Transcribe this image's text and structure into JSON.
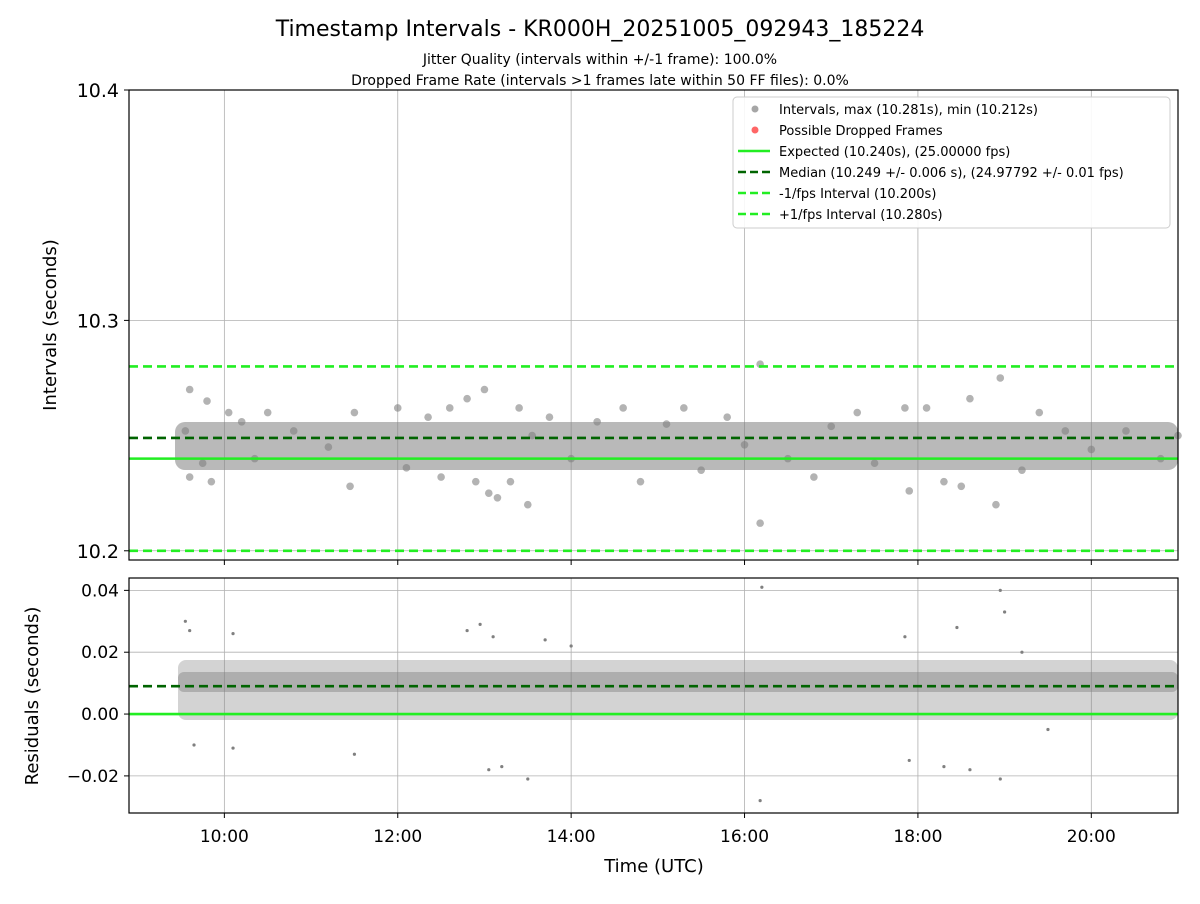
{
  "chart_data": [
    {
      "type": "scatter",
      "panel": "top",
      "title": "Timestamp Intervals - KR000H_20251005_092943_185224",
      "subtitle_lines": [
        "Jitter Quality (intervals within +/-1 frame): 100.0%",
        "Dropped Frame Rate (intervals >1 frames late within 50 FF files): 0.0%"
      ],
      "ylabel": "Intervals (seconds)",
      "xlim_hours": [
        8.9,
        21.0
      ],
      "ylim": [
        10.196,
        10.4
      ],
      "yticks": [
        10.2,
        10.3,
        10.4
      ],
      "ytick_labels": [
        "10.2",
        "10.3",
        "10.4"
      ],
      "grid": true,
      "legend_position": "top-right",
      "legend": [
        {
          "label": "Intervals, max (10.281s), min (10.212s)",
          "kind": "marker",
          "color": "#808080"
        },
        {
          "label": "Possible Dropped Frames",
          "kind": "marker",
          "color": "#ff0000"
        },
        {
          "label": "Expected (10.240s), (25.00000 fps)",
          "kind": "solid",
          "color": "#22ee22"
        },
        {
          "label": "Median (10.249 +/- 0.006 s), (24.97792 +/- 0.01 fps)",
          "kind": "dashed",
          "color": "#006400"
        },
        {
          "label": "-1/fps Interval (10.200s)",
          "kind": "dashed",
          "color": "#22ee22"
        },
        {
          "label": "+1/fps Interval (10.280s)",
          "kind": "dashed",
          "color": "#22ee22"
        }
      ],
      "reference_lines": [
        {
          "name": "expected",
          "y": 10.24,
          "style": "solid",
          "color": "#22ee22"
        },
        {
          "name": "median",
          "y": 10.249,
          "style": "dashed",
          "color": "#006400"
        },
        {
          "name": "minus-1-fps",
          "y": 10.2,
          "style": "dashed",
          "color": "#22ee22"
        },
        {
          "name": "plus-1-fps",
          "y": 10.28,
          "style": "dashed",
          "color": "#22ee22"
        }
      ],
      "series": [
        {
          "name": "intervals",
          "color": "#808080",
          "points": [
            [
              9.55,
              10.252
            ],
            [
              9.6,
              10.27
            ],
            [
              9.6,
              10.232
            ],
            [
              9.75,
              10.238
            ],
            [
              9.8,
              10.265
            ],
            [
              9.85,
              10.23
            ],
            [
              10.05,
              10.26
            ],
            [
              10.2,
              10.256
            ],
            [
              10.35,
              10.24
            ],
            [
              10.5,
              10.26
            ],
            [
              10.8,
              10.252
            ],
            [
              11.2,
              10.245
            ],
            [
              11.5,
              10.26
            ],
            [
              11.45,
              10.228
            ],
            [
              12.0,
              10.262
            ],
            [
              12.1,
              10.236
            ],
            [
              12.35,
              10.258
            ],
            [
              12.5,
              10.232
            ],
            [
              12.6,
              10.262
            ],
            [
              12.8,
              10.266
            ],
            [
              12.9,
              10.23
            ],
            [
              13.0,
              10.27
            ],
            [
              13.05,
              10.225
            ],
            [
              13.15,
              10.223
            ],
            [
              13.3,
              10.23
            ],
            [
              13.4,
              10.262
            ],
            [
              13.5,
              10.22
            ],
            [
              13.55,
              10.25
            ],
            [
              13.75,
              10.258
            ],
            [
              14.0,
              10.24
            ],
            [
              14.3,
              10.256
            ],
            [
              14.6,
              10.262
            ],
            [
              14.8,
              10.23
            ],
            [
              15.1,
              10.255
            ],
            [
              15.3,
              10.262
            ],
            [
              15.5,
              10.235
            ],
            [
              15.8,
              10.258
            ],
            [
              16.0,
              10.246
            ],
            [
              16.18,
              10.281
            ],
            [
              16.18,
              10.212
            ],
            [
              16.5,
              10.24
            ],
            [
              16.8,
              10.232
            ],
            [
              17.0,
              10.254
            ],
            [
              17.3,
              10.26
            ],
            [
              17.5,
              10.238
            ],
            [
              17.85,
              10.262
            ],
            [
              17.9,
              10.226
            ],
            [
              18.1,
              10.262
            ],
            [
              18.3,
              10.23
            ],
            [
              18.5,
              10.228
            ],
            [
              18.6,
              10.266
            ],
            [
              18.9,
              10.22
            ],
            [
              18.95,
              10.275
            ],
            [
              19.2,
              10.235
            ],
            [
              19.4,
              10.26
            ],
            [
              19.7,
              10.252
            ],
            [
              20.0,
              10.244
            ],
            [
              20.4,
              10.252
            ],
            [
              20.8,
              10.24
            ],
            [
              21.0,
              10.25
            ]
          ]
        }
      ]
    },
    {
      "type": "scatter",
      "panel": "bottom",
      "xlabel": "Time (UTC)",
      "ylabel": "Residuals (seconds)",
      "xlim_hours": [
        8.9,
        21.0
      ],
      "xticks_hours": [
        10,
        12,
        14,
        16,
        18,
        20
      ],
      "xtick_labels": [
        "10:00",
        "12:00",
        "14:00",
        "16:00",
        "18:00",
        "20:00"
      ],
      "ylim": [
        -0.032,
        0.044
      ],
      "yticks": [
        -0.02,
        0.0,
        0.02,
        0.04
      ],
      "ytick_labels": [
        "−0.02",
        "0.00",
        "0.02",
        "0.04"
      ],
      "grid": true,
      "reference_lines": [
        {
          "name": "zero",
          "y": 0.0,
          "style": "solid",
          "color": "#22ee22"
        },
        {
          "name": "median-offset",
          "y": 0.009,
          "style": "dashed",
          "color": "#006400"
        }
      ],
      "series": [
        {
          "name": "residuals",
          "color": "#808080",
          "points": [
            [
              9.55,
              0.03
            ],
            [
              9.6,
              0.027
            ],
            [
              9.65,
              -0.01
            ],
            [
              10.1,
              0.026
            ],
            [
              10.1,
              -0.011
            ],
            [
              11.5,
              -0.013
            ],
            [
              12.8,
              0.027
            ],
            [
              12.95,
              0.029
            ],
            [
              13.05,
              -0.018
            ],
            [
              13.1,
              0.025
            ],
            [
              13.2,
              -0.017
            ],
            [
              13.5,
              -0.021
            ],
            [
              13.7,
              0.024
            ],
            [
              14.0,
              0.022
            ],
            [
              16.2,
              0.041
            ],
            [
              16.18,
              -0.028
            ],
            [
              17.85,
              0.025
            ],
            [
              17.9,
              -0.015
            ],
            [
              18.3,
              -0.017
            ],
            [
              18.45,
              0.028
            ],
            [
              18.6,
              -0.018
            ],
            [
              18.95,
              0.04
            ],
            [
              18.95,
              -0.021
            ],
            [
              19.0,
              0.033
            ],
            [
              19.2,
              0.02
            ],
            [
              19.5,
              -0.005
            ]
          ]
        }
      ]
    }
  ]
}
